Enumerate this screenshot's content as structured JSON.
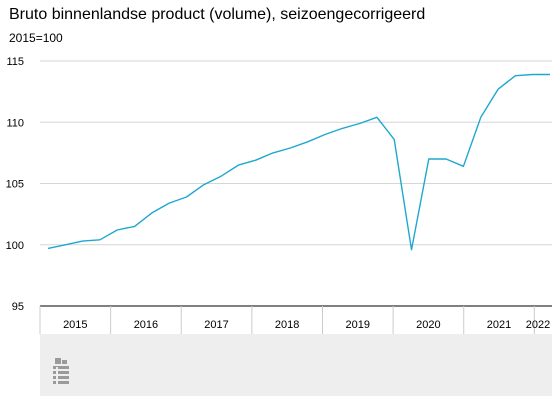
{
  "chart_data": {
    "type": "line",
    "title": "Bruto binnenlandse product (volume), seizoengecorrigeerd",
    "subtitle": "2015=100",
    "ylim": [
      95,
      115
    ],
    "yticks": [
      "95",
      "100",
      "105",
      "110",
      "115"
    ],
    "grid": true,
    "line_color": "#1ea8cf",
    "years": [
      "2015",
      "2016",
      "2017",
      "2018",
      "2019",
      "2020",
      "2021",
      "2022"
    ],
    "series": [
      {
        "x": [
          "2015 Q1",
          "2015 Q2",
          "2015 Q3",
          "2015 Q4",
          "2016 Q1",
          "2016 Q2",
          "2016 Q3",
          "2016 Q4",
          "2017 Q1",
          "2017 Q2",
          "2017 Q3",
          "2017 Q4",
          "2018 Q1",
          "2018 Q2",
          "2018 Q3",
          "2018 Q4",
          "2019 Q1",
          "2019 Q2",
          "2019 Q3",
          "2019 Q4",
          "2020 Q1",
          "2020 Q2",
          "2020 Q3",
          "2020 Q4",
          "2021 Q1",
          "2021 Q2",
          "2021 Q3",
          "2021 Q4",
          "2022 Q1",
          "2022 Q2"
        ],
        "values": [
          99.7,
          100.0,
          100.3,
          100.4,
          101.2,
          101.5,
          102.6,
          103.4,
          103.9,
          104.9,
          105.6,
          106.5,
          106.9,
          107.5,
          107.9,
          108.4,
          109.0,
          109.5,
          109.9,
          110.4,
          108.6,
          99.6,
          107.0,
          107.0,
          106.4,
          110.4,
          112.7,
          113.8,
          113.9,
          113.9
        ]
      }
    ]
  },
  "footer": {
    "logo": "cbs-logo-icon"
  }
}
